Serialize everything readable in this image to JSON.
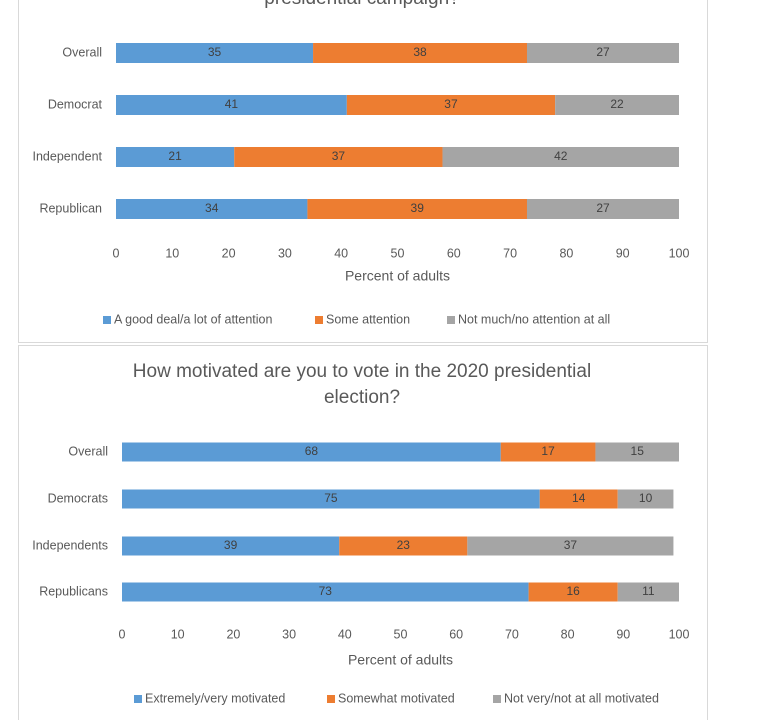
{
  "chart_data": [
    {
      "type": "bar",
      "orientation": "horizontal",
      "stacked": true,
      "title": "presidential campaign?",
      "categories": [
        "Overall",
        "Democrat",
        "Independent",
        "Republican"
      ],
      "series": [
        {
          "name": "A good deal/a lot of attention",
          "color": "#5b9bd5",
          "values": [
            35,
            41,
            21,
            34
          ]
        },
        {
          "name": "Some attention",
          "color": "#ed7d31",
          "values": [
            38,
            37,
            37,
            39
          ]
        },
        {
          "name": "Not much/no attention at all",
          "color": "#a5a5a5",
          "values": [
            27,
            22,
            42,
            27
          ]
        }
      ],
      "xlim": [
        0,
        100
      ],
      "xticks": [
        0,
        10,
        20,
        30,
        40,
        50,
        60,
        70,
        80,
        90,
        100
      ],
      "xlabel": "Percent of adults",
      "legend": "bottom"
    },
    {
      "type": "bar",
      "orientation": "horizontal",
      "stacked": true,
      "title": "How motivated are you to vote in the 2020 presidential election?",
      "categories": [
        "Overall",
        "Democrats",
        "Independents",
        "Republicans"
      ],
      "series": [
        {
          "name": "Extremely/very motivated",
          "color": "#5b9bd5",
          "values": [
            68,
            75,
            39,
            73
          ]
        },
        {
          "name": "Somewhat motivated",
          "color": "#ed7d31",
          "values": [
            17,
            14,
            23,
            16
          ]
        },
        {
          "name": "Not very/not at all motivated",
          "color": "#a5a5a5",
          "values": [
            15,
            10,
            37,
            11
          ]
        }
      ],
      "xlim": [
        0,
        100
      ],
      "xticks": [
        0,
        10,
        20,
        30,
        40,
        50,
        60,
        70,
        80,
        90,
        100
      ],
      "xlabel": "Percent of adults",
      "legend": "bottom"
    }
  ]
}
